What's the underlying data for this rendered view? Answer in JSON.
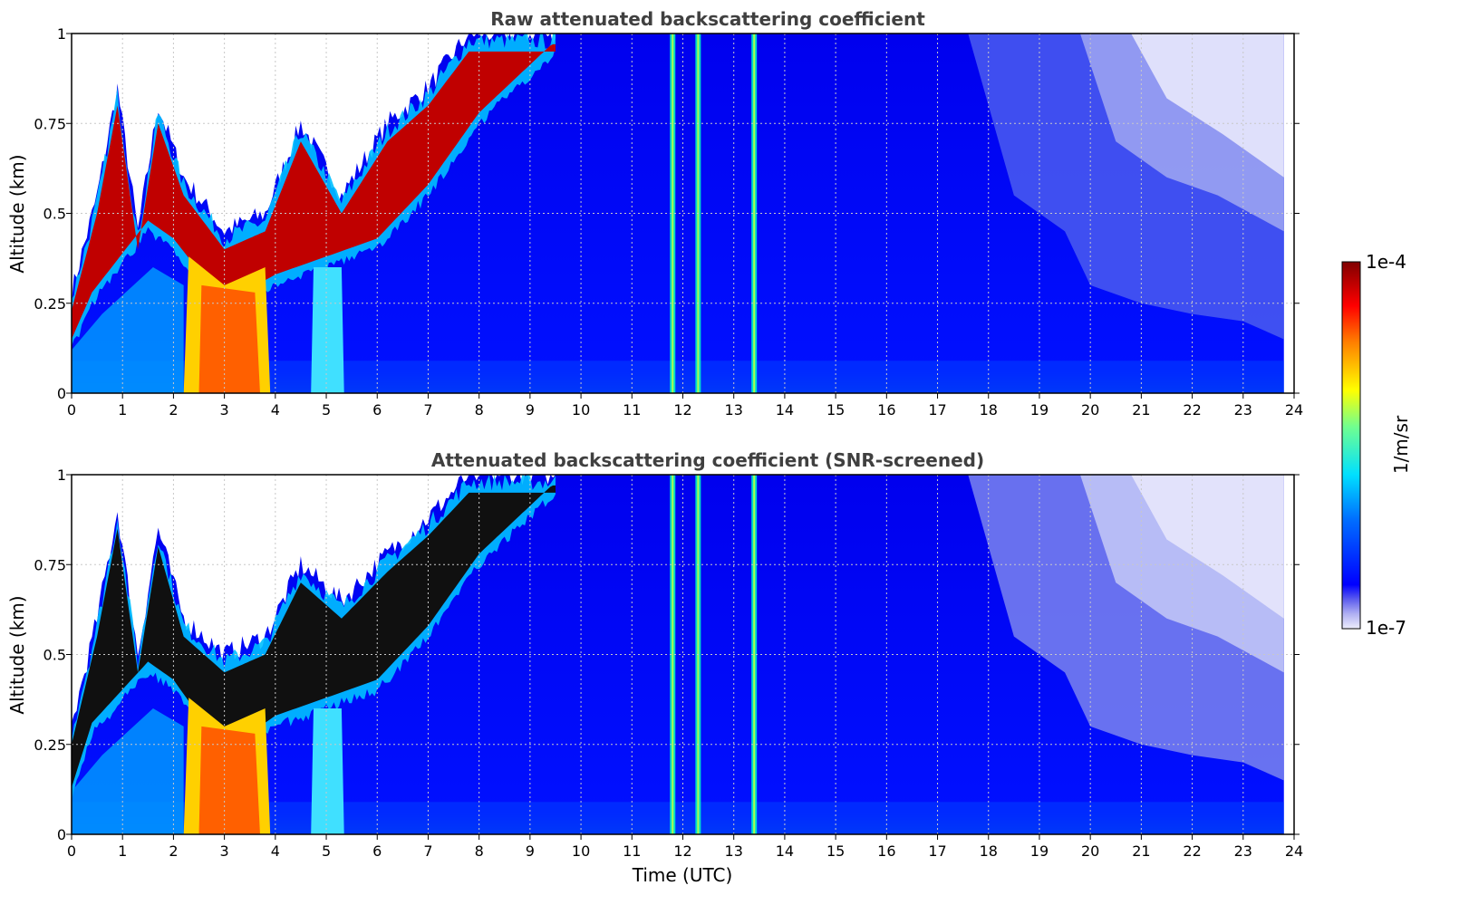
{
  "chart_data": [
    {
      "type": "heatmap",
      "title": "Raw attenuated backscattering coefficient",
      "xlabel": "",
      "ylabel": "Altitude (km)",
      "xlim": [
        0,
        24
      ],
      "ylim": [
        0,
        1
      ],
      "xticks": [
        "0",
        "1",
        "2",
        "3",
        "4",
        "5",
        "6",
        "7",
        "8",
        "9",
        "10",
        "11",
        "12",
        "13",
        "14",
        "15",
        "16",
        "17",
        "18",
        "19",
        "20",
        "21",
        "22",
        "23",
        "24"
      ],
      "yticks": [
        "0",
        "0.25",
        "0.5",
        "0.75",
        "1"
      ],
      "grid": true,
      "data_coverage_hours": [
        0,
        23.8
      ],
      "layer_top_km": [
        [
          0,
          0.28
        ],
        [
          0.5,
          0.55
        ],
        [
          0.9,
          0.85
        ],
        [
          1.3,
          0.45
        ],
        [
          1.7,
          0.8
        ],
        [
          2.2,
          0.6
        ],
        [
          3.0,
          0.45
        ],
        [
          3.8,
          0.5
        ],
        [
          4.5,
          0.75
        ],
        [
          5.3,
          0.55
        ],
        [
          6.2,
          0.75
        ],
        [
          7.0,
          0.85
        ],
        [
          7.8,
          1.0
        ],
        [
          9.5,
          1.0
        ]
      ],
      "layer_bottom_km": [
        [
          0,
          0.12
        ],
        [
          0.4,
          0.25
        ],
        [
          1.5,
          0.45
        ],
        [
          2.0,
          0.4
        ],
        [
          3.0,
          0.22
        ],
        [
          4.0,
          0.3
        ],
        [
          5.0,
          0.35
        ],
        [
          6.0,
          0.4
        ],
        [
          7.0,
          0.55
        ],
        [
          8.0,
          0.75
        ],
        [
          9.5,
          0.95
        ]
      ],
      "vertical_streaks_hours": [
        11.8,
        12.3,
        13.4
      ],
      "notes": ""
    },
    {
      "type": "heatmap",
      "title": "Attenuated backscattering coefficient (SNR-screened)",
      "xlabel": "Time (UTC)",
      "ylabel": "Altitude (km)",
      "xlim": [
        0,
        24
      ],
      "ylim": [
        0,
        1
      ],
      "xticks": [
        "0",
        "1",
        "2",
        "3",
        "4",
        "5",
        "6",
        "7",
        "8",
        "9",
        "10",
        "11",
        "12",
        "13",
        "14",
        "15",
        "16",
        "17",
        "18",
        "19",
        "20",
        "21",
        "22",
        "23",
        "24"
      ],
      "yticks": [
        "0",
        "0.25",
        "0.5",
        "0.75",
        "1"
      ],
      "grid": true,
      "data_coverage_hours": [
        0,
        23.8
      ],
      "layer_top_km": [
        [
          0,
          0.3
        ],
        [
          0.5,
          0.6
        ],
        [
          0.9,
          0.9
        ],
        [
          1.3,
          0.5
        ],
        [
          1.7,
          0.85
        ],
        [
          2.2,
          0.6
        ],
        [
          3.0,
          0.5
        ],
        [
          3.8,
          0.55
        ],
        [
          4.5,
          0.75
        ],
        [
          5.3,
          0.65
        ],
        [
          6.2,
          0.78
        ],
        [
          7.0,
          0.88
        ],
        [
          7.8,
          1.0
        ],
        [
          9.5,
          1.0
        ]
      ],
      "layer_bottom_km": [
        [
          0,
          0.1
        ],
        [
          0.4,
          0.28
        ],
        [
          1.5,
          0.45
        ],
        [
          2.0,
          0.4
        ],
        [
          3.0,
          0.2
        ],
        [
          4.0,
          0.3
        ],
        [
          5.0,
          0.35
        ],
        [
          6.0,
          0.4
        ],
        [
          7.0,
          0.55
        ],
        [
          8.0,
          0.75
        ],
        [
          9.5,
          0.95
        ]
      ],
      "vertical_streaks_hours": [
        11.8,
        12.3,
        13.4
      ]
    }
  ],
  "colorbar": {
    "max_label": "1e-4",
    "min_label": "1e-7",
    "unit_label": "1/m/sr",
    "colormap": "jet",
    "colors": [
      "#e8e8fb",
      "#b8b8f4",
      "#7d7def",
      "#0000ff",
      "#0080ff",
      "#00ffff",
      "#80ff80",
      "#ffff00",
      "#ff8000",
      "#ff0000",
      "#800000"
    ]
  }
}
